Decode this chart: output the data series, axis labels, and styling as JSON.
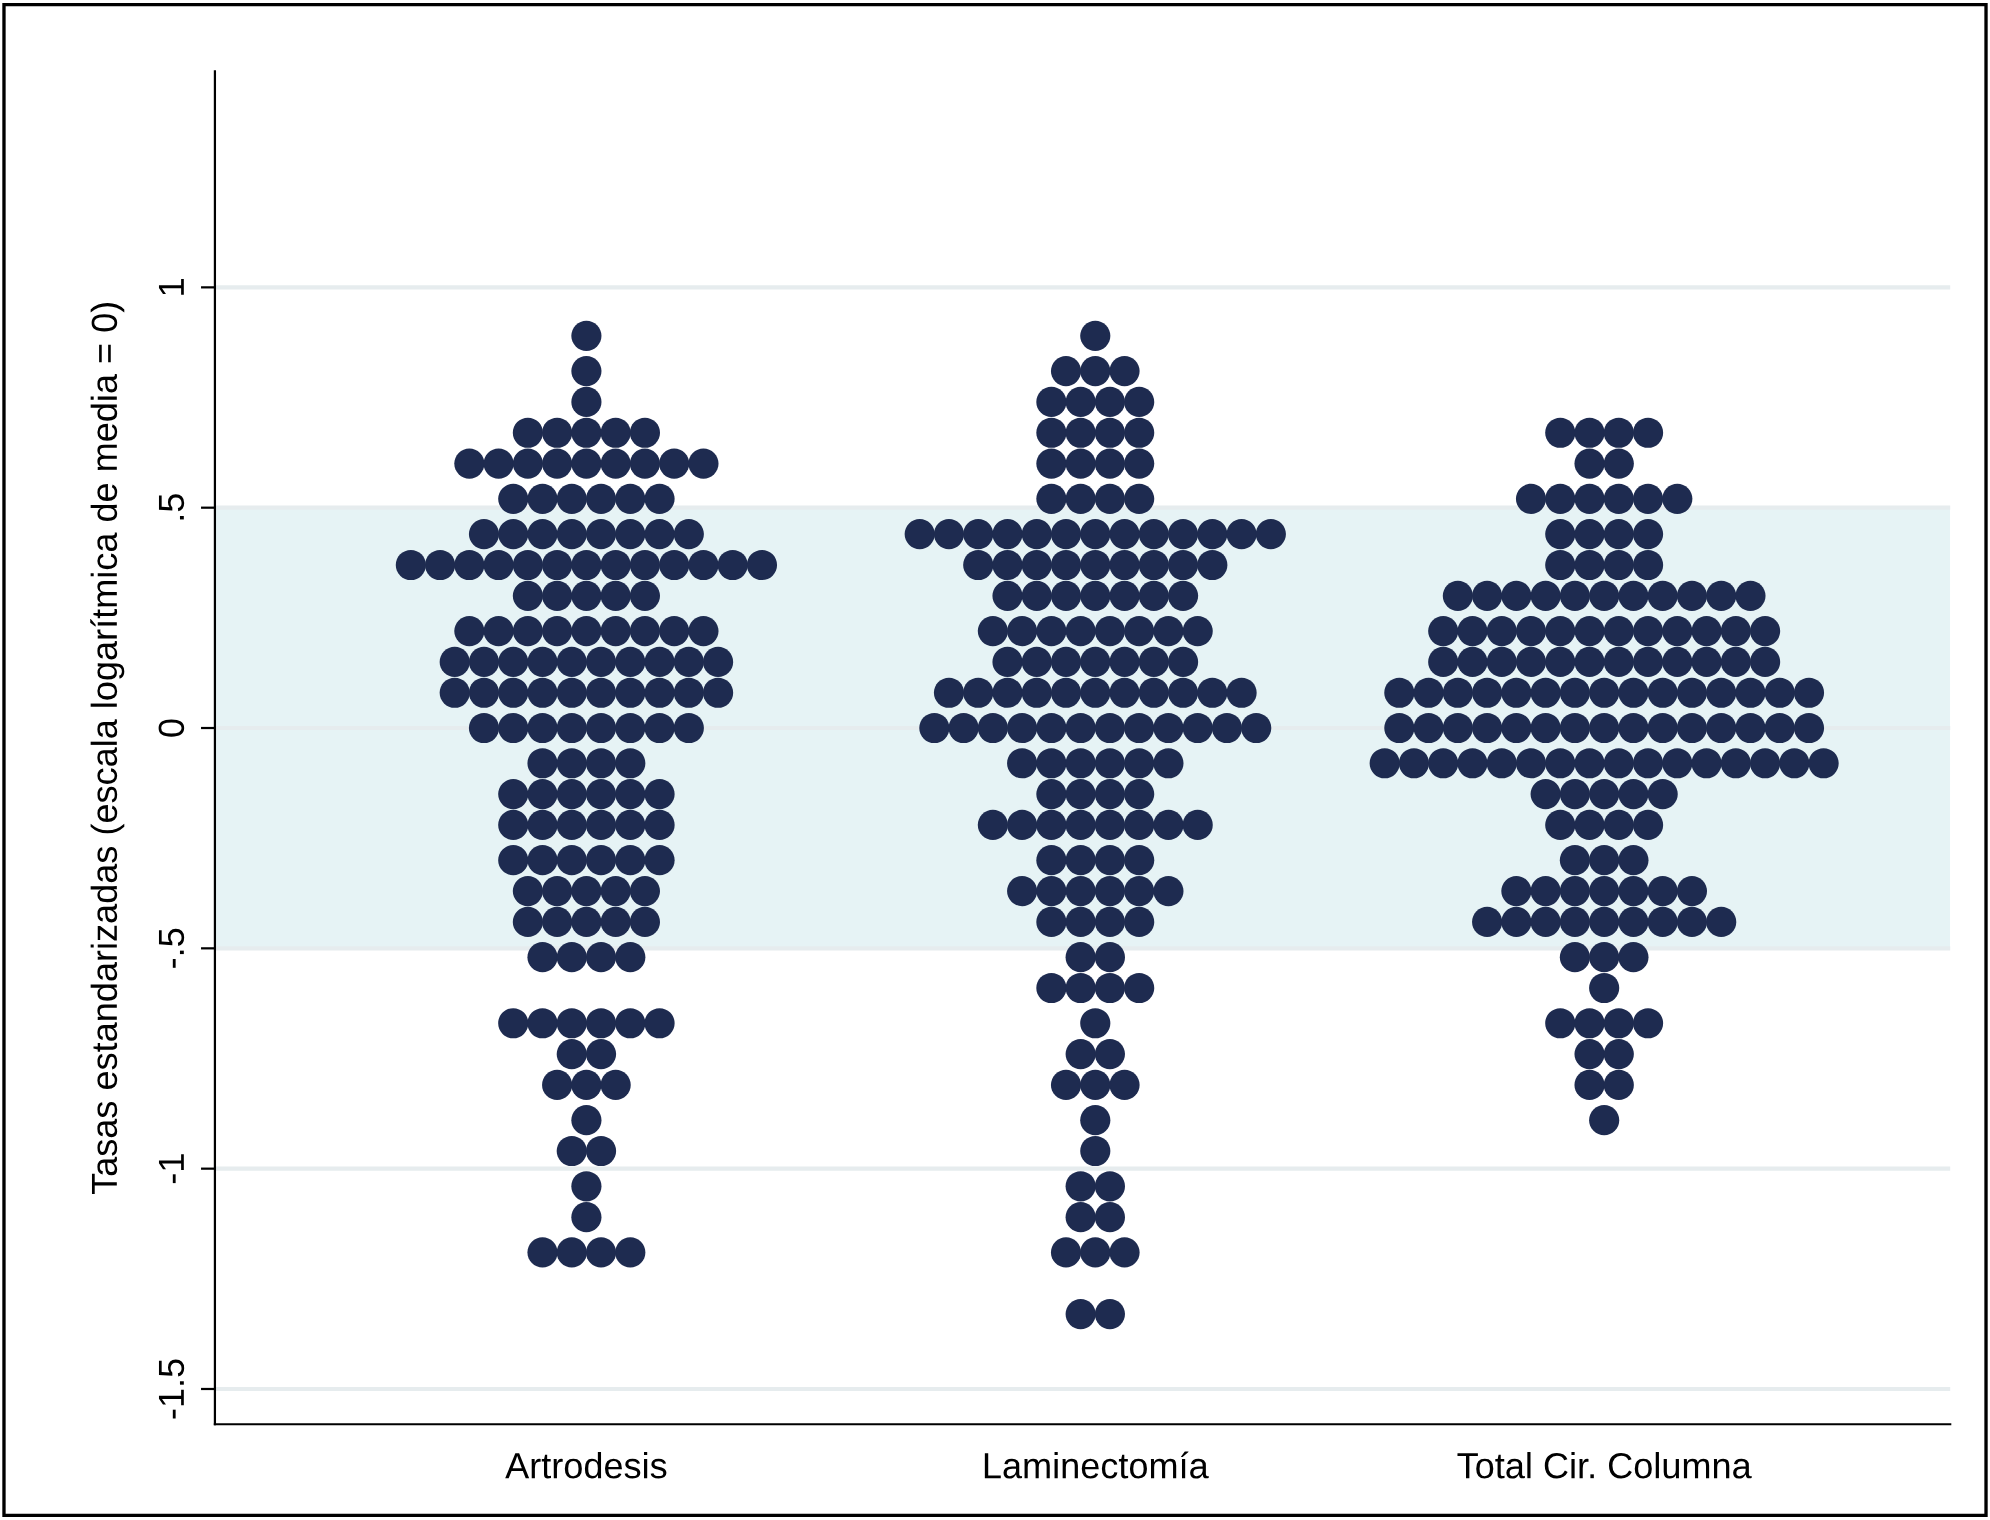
{
  "chart_data": {
    "type": "scatter",
    "ylabel": "Tasas estandarizadas (escala logarítmica de media = 0)",
    "categories": [
      "Artrodesis",
      "Laminectomía",
      "Total Cir. Columna"
    ],
    "ylim": [
      -1.58,
      1.49
    ],
    "yticks": [
      {
        "value": -1.5,
        "label": "-1.5"
      },
      {
        "value": -1,
        "label": "-1"
      },
      {
        "value": -0.5,
        "label": "-.5"
      },
      0,
      {
        "value": 0.5,
        "label": ".5"
      },
      1
    ],
    "grid": "y",
    "marker": "circle",
    "bands": [
      {
        "axis": "y",
        "from": -0.5,
        "to": 0.5,
        "color": "#e6f3f5"
      }
    ],
    "series": [
      {
        "color": "#1e2b50",
        "x": [
          "Artrodesis",
          "Artrodesis",
          "Artrodesis",
          "Artrodesis",
          "Artrodesis",
          "Artrodesis",
          "Artrodesis",
          "Artrodesis",
          "Artrodesis",
          "Artrodesis",
          "Artrodesis",
          "Artrodesis",
          "Artrodesis",
          "Artrodesis",
          "Artrodesis",
          "Artrodesis",
          "Artrodesis",
          "Artrodesis",
          "Artrodesis",
          "Artrodesis",
          "Artrodesis",
          "Artrodesis",
          "Artrodesis",
          "Artrodesis",
          "Artrodesis",
          "Artrodesis",
          "Artrodesis",
          "Artrodesis",
          "Artrodesis",
          "Artrodesis",
          "Artrodesis",
          "Artrodesis",
          "Artrodesis",
          "Artrodesis",
          "Artrodesis",
          "Artrodesis",
          "Artrodesis",
          "Artrodesis",
          "Artrodesis",
          "Artrodesis",
          "Artrodesis",
          "Artrodesis",
          "Artrodesis",
          "Artrodesis",
          "Artrodesis",
          "Artrodesis",
          "Artrodesis",
          "Artrodesis",
          "Artrodesis",
          "Artrodesis",
          "Artrodesis",
          "Artrodesis",
          "Artrodesis",
          "Artrodesis",
          "Artrodesis",
          "Artrodesis",
          "Artrodesis",
          "Artrodesis",
          "Artrodesis",
          "Artrodesis",
          "Artrodesis",
          "Artrodesis",
          "Artrodesis",
          "Artrodesis",
          "Artrodesis",
          "Artrodesis",
          "Artrodesis",
          "Artrodesis",
          "Artrodesis",
          "Artrodesis",
          "Artrodesis",
          "Artrodesis",
          "Artrodesis",
          "Artrodesis",
          "Artrodesis",
          "Artrodesis",
          "Artrodesis",
          "Artrodesis",
          "Artrodesis",
          "Artrodesis",
          "Artrodesis",
          "Artrodesis",
          "Artrodesis",
          "Artrodesis",
          "Artrodesis",
          "Artrodesis",
          "Artrodesis",
          "Artrodesis",
          "Artrodesis",
          "Artrodesis",
          "Artrodesis",
          "Artrodesis",
          "Artrodesis",
          "Artrodesis",
          "Artrodesis",
          "Artrodesis",
          "Artrodesis",
          "Artrodesis",
          "Artrodesis",
          "Artrodesis",
          "Artrodesis",
          "Artrodesis",
          "Artrodesis",
          "Artrodesis",
          "Artrodesis",
          "Artrodesis",
          "Artrodesis",
          "Artrodesis",
          "Artrodesis",
          "Artrodesis",
          "Artrodesis",
          "Artrodesis",
          "Artrodesis",
          "Artrodesis",
          "Artrodesis",
          "Artrodesis",
          "Artrodesis",
          "Artrodesis",
          "Artrodesis",
          "Artrodesis",
          "Artrodesis",
          "Artrodesis",
          "Artrodesis",
          "Artrodesis",
          "Artrodesis",
          "Artrodesis",
          "Artrodesis",
          "Artrodesis",
          "Artrodesis",
          "Artrodesis",
          "Artrodesis",
          "Artrodesis",
          "Artrodesis",
          "Artrodesis",
          "Artrodesis",
          "Artrodesis",
          "Artrodesis",
          "Artrodesis",
          "Artrodesis",
          "Artrodesis",
          "Artrodesis",
          "Artrodesis",
          "Laminectomía",
          "Laminectomía",
          "Laminectomía",
          "Laminectomía",
          "Laminectomía",
          "Laminectomía",
          "Laminectomía",
          "Laminectomía",
          "Laminectomía",
          "Laminectomía",
          "Laminectomía",
          "Laminectomía",
          "Laminectomía",
          "Laminectomía",
          "Laminectomía",
          "Laminectomía",
          "Laminectomía",
          "Laminectomía",
          "Laminectomía",
          "Laminectomía",
          "Laminectomía",
          "Laminectomía",
          "Laminectomía",
          "Laminectomía",
          "Laminectomía",
          "Laminectomía",
          "Laminectomía",
          "Laminectomía",
          "Laminectomía",
          "Laminectomía",
          "Laminectomía",
          "Laminectomía",
          "Laminectomía",
          "Laminectomía",
          "Laminectomía",
          "Laminectomía",
          "Laminectomía",
          "Laminectomía",
          "Laminectomía",
          "Laminectomía",
          "Laminectomía",
          "Laminectomía",
          "Laminectomía",
          "Laminectomía",
          "Laminectomía",
          "Laminectomía",
          "Laminectomía",
          "Laminectomía",
          "Laminectomía",
          "Laminectomía",
          "Laminectomía",
          "Laminectomía",
          "Laminectomía",
          "Laminectomía",
          "Laminectomía",
          "Laminectomía",
          "Laminectomía",
          "Laminectomía",
          "Laminectomía",
          "Laminectomía",
          "Laminectomía",
          "Laminectomía",
          "Laminectomía",
          "Laminectomía",
          "Laminectomía",
          "Laminectomía",
          "Laminectomía",
          "Laminectomía",
          "Laminectomía",
          "Laminectomía",
          "Laminectomía",
          "Laminectomía",
          "Laminectomía",
          "Laminectomía",
          "Laminectomía",
          "Laminectomía",
          "Laminectomía",
          "Laminectomía",
          "Laminectomía",
          "Laminectomía",
          "Laminectomía",
          "Laminectomía",
          "Laminectomía",
          "Laminectomía",
          "Laminectomía",
          "Laminectomía",
          "Laminectomía",
          "Laminectomía",
          "Laminectomía",
          "Laminectomía",
          "Laminectomía",
          "Laminectomía",
          "Laminectomía",
          "Laminectomía",
          "Laminectomía",
          "Laminectomía",
          "Laminectomía",
          "Laminectomía",
          "Laminectomía",
          "Laminectomía",
          "Laminectomía",
          "Laminectomía",
          "Laminectomía",
          "Laminectomía",
          "Laminectomía",
          "Laminectomía",
          "Laminectomía",
          "Laminectomía",
          "Laminectomía",
          "Laminectomía",
          "Laminectomía",
          "Laminectomía",
          "Laminectomía",
          "Laminectomía",
          "Laminectomía",
          "Laminectomía",
          "Laminectomía",
          "Laminectomía",
          "Laminectomía",
          "Laminectomía",
          "Laminectomía",
          "Laminectomía",
          "Laminectomía",
          "Laminectomía",
          "Laminectomía",
          "Laminectomía",
          "Laminectomía",
          "Laminectomía",
          "Laminectomía",
          "Laminectomía",
          "Laminectomía",
          "Laminectomía",
          "Laminectomía",
          "Laminectomía",
          "Laminectomía",
          "Laminectomía",
          "Laminectomía",
          "Laminectomía",
          "Laminectomía",
          "Laminectomía",
          "Laminectomía",
          "Laminectomía",
          "Total Cir. Columna",
          "Total Cir. Columna",
          "Total Cir. Columna",
          "Total Cir. Columna",
          "Total Cir. Columna",
          "Total Cir. Columna",
          "Total Cir. Columna",
          "Total Cir. Columna",
          "Total Cir. Columna",
          "Total Cir. Columna",
          "Total Cir. Columna",
          "Total Cir. Columna",
          "Total Cir. Columna",
          "Total Cir. Columna",
          "Total Cir. Columna",
          "Total Cir. Columna",
          "Total Cir. Columna",
          "Total Cir. Columna",
          "Total Cir. Columna",
          "Total Cir. Columna",
          "Total Cir. Columna",
          "Total Cir. Columna",
          "Total Cir. Columna",
          "Total Cir. Columna",
          "Total Cir. Columna",
          "Total Cir. Columna",
          "Total Cir. Columna",
          "Total Cir. Columna",
          "Total Cir. Columna",
          "Total Cir. Columna",
          "Total Cir. Columna",
          "Total Cir. Columna",
          "Total Cir. Columna",
          "Total Cir. Columna",
          "Total Cir. Columna",
          "Total Cir. Columna",
          "Total Cir. Columna",
          "Total Cir. Columna",
          "Total Cir. Columna",
          "Total Cir. Columna",
          "Total Cir. Columna",
          "Total Cir. Columna",
          "Total Cir. Columna",
          "Total Cir. Columna",
          "Total Cir. Columna",
          "Total Cir. Columna",
          "Total Cir. Columna",
          "Total Cir. Columna",
          "Total Cir. Columna",
          "Total Cir. Columna",
          "Total Cir. Columna",
          "Total Cir. Columna",
          "Total Cir. Columna",
          "Total Cir. Columna",
          "Total Cir. Columna",
          "Total Cir. Columna",
          "Total Cir. Columna",
          "Total Cir. Columna",
          "Total Cir. Columna",
          "Total Cir. Columna",
          "Total Cir. Columna",
          "Total Cir. Columna",
          "Total Cir. Columna",
          "Total Cir. Columna",
          "Total Cir. Columna",
          "Total Cir. Columna",
          "Total Cir. Columna",
          "Total Cir. Columna",
          "Total Cir. Columna",
          "Total Cir. Columna",
          "Total Cir. Columna",
          "Total Cir. Columna",
          "Total Cir. Columna",
          "Total Cir. Columna",
          "Total Cir. Columna",
          "Total Cir. Columna",
          "Total Cir. Columna",
          "Total Cir. Columna",
          "Total Cir. Columna",
          "Total Cir. Columna",
          "Total Cir. Columna",
          "Total Cir. Columna",
          "Total Cir. Columna",
          "Total Cir. Columna",
          "Total Cir. Columna",
          "Total Cir. Columna",
          "Total Cir. Columna",
          "Total Cir. Columna",
          "Total Cir. Columna",
          "Total Cir. Columna",
          "Total Cir. Columna",
          "Total Cir. Columna",
          "Total Cir. Columna",
          "Total Cir. Columna",
          "Total Cir. Columna",
          "Total Cir. Columna",
          "Total Cir. Columna",
          "Total Cir. Columna",
          "Total Cir. Columna",
          "Total Cir. Columna",
          "Total Cir. Columna",
          "Total Cir. Columna",
          "Total Cir. Columna",
          "Total Cir. Columna",
          "Total Cir. Columna",
          "Total Cir. Columna",
          "Total Cir. Columna",
          "Total Cir. Columna",
          "Total Cir. Columna",
          "Total Cir. Columna",
          "Total Cir. Columna",
          "Total Cir. Columna",
          "Total Cir. Columna",
          "Total Cir. Columna",
          "Total Cir. Columna",
          "Total Cir. Columna",
          "Total Cir. Columna",
          "Total Cir. Columna",
          "Total Cir. Columna",
          "Total Cir. Columna",
          "Total Cir. Columna",
          "Total Cir. Columna",
          "Total Cir. Columna",
          "Total Cir. Columna",
          "Total Cir. Columna",
          "Total Cir. Columna",
          "Total Cir. Columna",
          "Total Cir. Columna",
          "Total Cir. Columna",
          "Total Cir. Columna",
          "Total Cir. Columna",
          "Total Cir. Columna",
          "Total Cir. Columna",
          "Total Cir. Columna",
          "Total Cir. Columna",
          "Total Cir. Columna",
          "Total Cir. Columna",
          "Total Cir. Columna",
          "Total Cir. Columna",
          "Total Cir. Columna",
          "Total Cir. Columna",
          "Total Cir. Columna"
        ],
        "values": [
          0.89,
          0.81,
          0.74,
          0.67,
          0.67,
          0.67,
          0.67,
          0.67,
          0.6,
          0.6,
          0.6,
          0.6,
          0.6,
          0.6,
          0.6,
          0.6,
          0.6,
          0.52,
          0.52,
          0.52,
          0.52,
          0.52,
          0.52,
          0.44,
          0.44,
          0.44,
          0.44,
          0.44,
          0.44,
          0.44,
          0.44,
          0.37,
          0.37,
          0.37,
          0.37,
          0.37,
          0.37,
          0.37,
          0.37,
          0.37,
          0.37,
          0.37,
          0.37,
          0.37,
          0.3,
          0.3,
          0.3,
          0.3,
          0.3,
          0.22,
          0.22,
          0.22,
          0.22,
          0.22,
          0.22,
          0.22,
          0.22,
          0.22,
          0.15,
          0.15,
          0.15,
          0.15,
          0.15,
          0.15,
          0.15,
          0.15,
          0.15,
          0.15,
          0.08,
          0.08,
          0.08,
          0.08,
          0.08,
          0.08,
          0.08,
          0.08,
          0.08,
          0.08,
          0,
          0,
          0,
          0,
          0,
          0,
          0,
          0,
          -0.08,
          -0.08,
          -0.08,
          -0.08,
          -0.15,
          -0.15,
          -0.15,
          -0.15,
          -0.15,
          -0.15,
          -0.22,
          -0.22,
          -0.22,
          -0.22,
          -0.22,
          -0.22,
          -0.3,
          -0.3,
          -0.3,
          -0.3,
          -0.3,
          -0.3,
          -0.37,
          -0.37,
          -0.37,
          -0.37,
          -0.37,
          -0.44,
          -0.44,
          -0.44,
          -0.44,
          -0.44,
          -0.52,
          -0.52,
          -0.52,
          -0.52,
          -0.67,
          -0.67,
          -0.67,
          -0.67,
          -0.67,
          -0.67,
          -0.74,
          -0.74,
          -0.81,
          -0.81,
          -0.81,
          -0.89,
          -0.96,
          -0.96,
          -1.04,
          -1.11,
          -1.19,
          -1.19,
          -1.19,
          -1.19,
          0.89,
          0.81,
          0.81,
          0.81,
          0.74,
          0.74,
          0.74,
          0.74,
          0.67,
          0.67,
          0.67,
          0.67,
          0.6,
          0.6,
          0.6,
          0.6,
          0.52,
          0.52,
          0.52,
          0.52,
          0.44,
          0.44,
          0.44,
          0.44,
          0.44,
          0.44,
          0.44,
          0.44,
          0.44,
          0.44,
          0.44,
          0.44,
          0.44,
          0.37,
          0.37,
          0.37,
          0.37,
          0.37,
          0.37,
          0.37,
          0.37,
          0.37,
          0.3,
          0.3,
          0.3,
          0.3,
          0.3,
          0.3,
          0.3,
          0.22,
          0.22,
          0.22,
          0.22,
          0.22,
          0.22,
          0.22,
          0.22,
          0.15,
          0.15,
          0.15,
          0.15,
          0.15,
          0.15,
          0.15,
          0.08,
          0.08,
          0.08,
          0.08,
          0.08,
          0.08,
          0.08,
          0.08,
          0.08,
          0.08,
          0.08,
          0,
          0,
          0,
          0,
          0,
          0,
          0,
          0,
          0,
          0,
          0,
          0,
          -0.08,
          -0.08,
          -0.08,
          -0.08,
          -0.08,
          -0.08,
          -0.15,
          -0.15,
          -0.15,
          -0.15,
          -0.22,
          -0.22,
          -0.22,
          -0.22,
          -0.22,
          -0.22,
          -0.22,
          -0.22,
          -0.3,
          -0.3,
          -0.3,
          -0.3,
          -0.37,
          -0.37,
          -0.37,
          -0.37,
          -0.37,
          -0.37,
          -0.44,
          -0.44,
          -0.44,
          -0.44,
          -0.52,
          -0.52,
          -0.59,
          -0.59,
          -0.59,
          -0.59,
          -0.67,
          -0.74,
          -0.74,
          -0.81,
          -0.81,
          -0.81,
          -0.89,
          -0.96,
          -1.04,
          -1.04,
          -1.11,
          -1.11,
          -1.19,
          -1.19,
          -1.19,
          -1.33,
          -1.33,
          0.67,
          0.67,
          0.67,
          0.67,
          0.6,
          0.6,
          0.52,
          0.52,
          0.52,
          0.52,
          0.52,
          0.52,
          0.44,
          0.44,
          0.44,
          0.44,
          0.37,
          0.37,
          0.37,
          0.37,
          0.3,
          0.3,
          0.3,
          0.3,
          0.3,
          0.3,
          0.3,
          0.3,
          0.3,
          0.3,
          0.3,
          0.22,
          0.22,
          0.22,
          0.22,
          0.22,
          0.22,
          0.22,
          0.22,
          0.22,
          0.22,
          0.22,
          0.22,
          0.15,
          0.15,
          0.15,
          0.15,
          0.15,
          0.15,
          0.15,
          0.15,
          0.15,
          0.15,
          0.15,
          0.15,
          0.08,
          0.08,
          0.08,
          0.08,
          0.08,
          0.08,
          0.08,
          0.08,
          0.08,
          0.08,
          0.08,
          0.08,
          0.08,
          0.08,
          0.08,
          0,
          0,
          0,
          0,
          0,
          0,
          0,
          0,
          0,
          0,
          0,
          0,
          0,
          0,
          0,
          -0.08,
          -0.08,
          -0.08,
          -0.08,
          -0.08,
          -0.08,
          -0.08,
          -0.08,
          -0.08,
          -0.08,
          -0.08,
          -0.08,
          -0.08,
          -0.08,
          -0.08,
          -0.08,
          -0.15,
          -0.15,
          -0.15,
          -0.15,
          -0.15,
          -0.22,
          -0.22,
          -0.22,
          -0.22,
          -0.3,
          -0.3,
          -0.3,
          -0.37,
          -0.37,
          -0.37,
          -0.37,
          -0.37,
          -0.37,
          -0.37,
          -0.44,
          -0.44,
          -0.44,
          -0.44,
          -0.44,
          -0.44,
          -0.44,
          -0.44,
          -0.44,
          -0.52,
          -0.52,
          -0.52,
          -0.59,
          -0.67,
          -0.67,
          -0.67,
          -0.67,
          -0.74,
          -0.74,
          -0.81,
          -0.81,
          -0.89
        ]
      }
    ]
  }
}
